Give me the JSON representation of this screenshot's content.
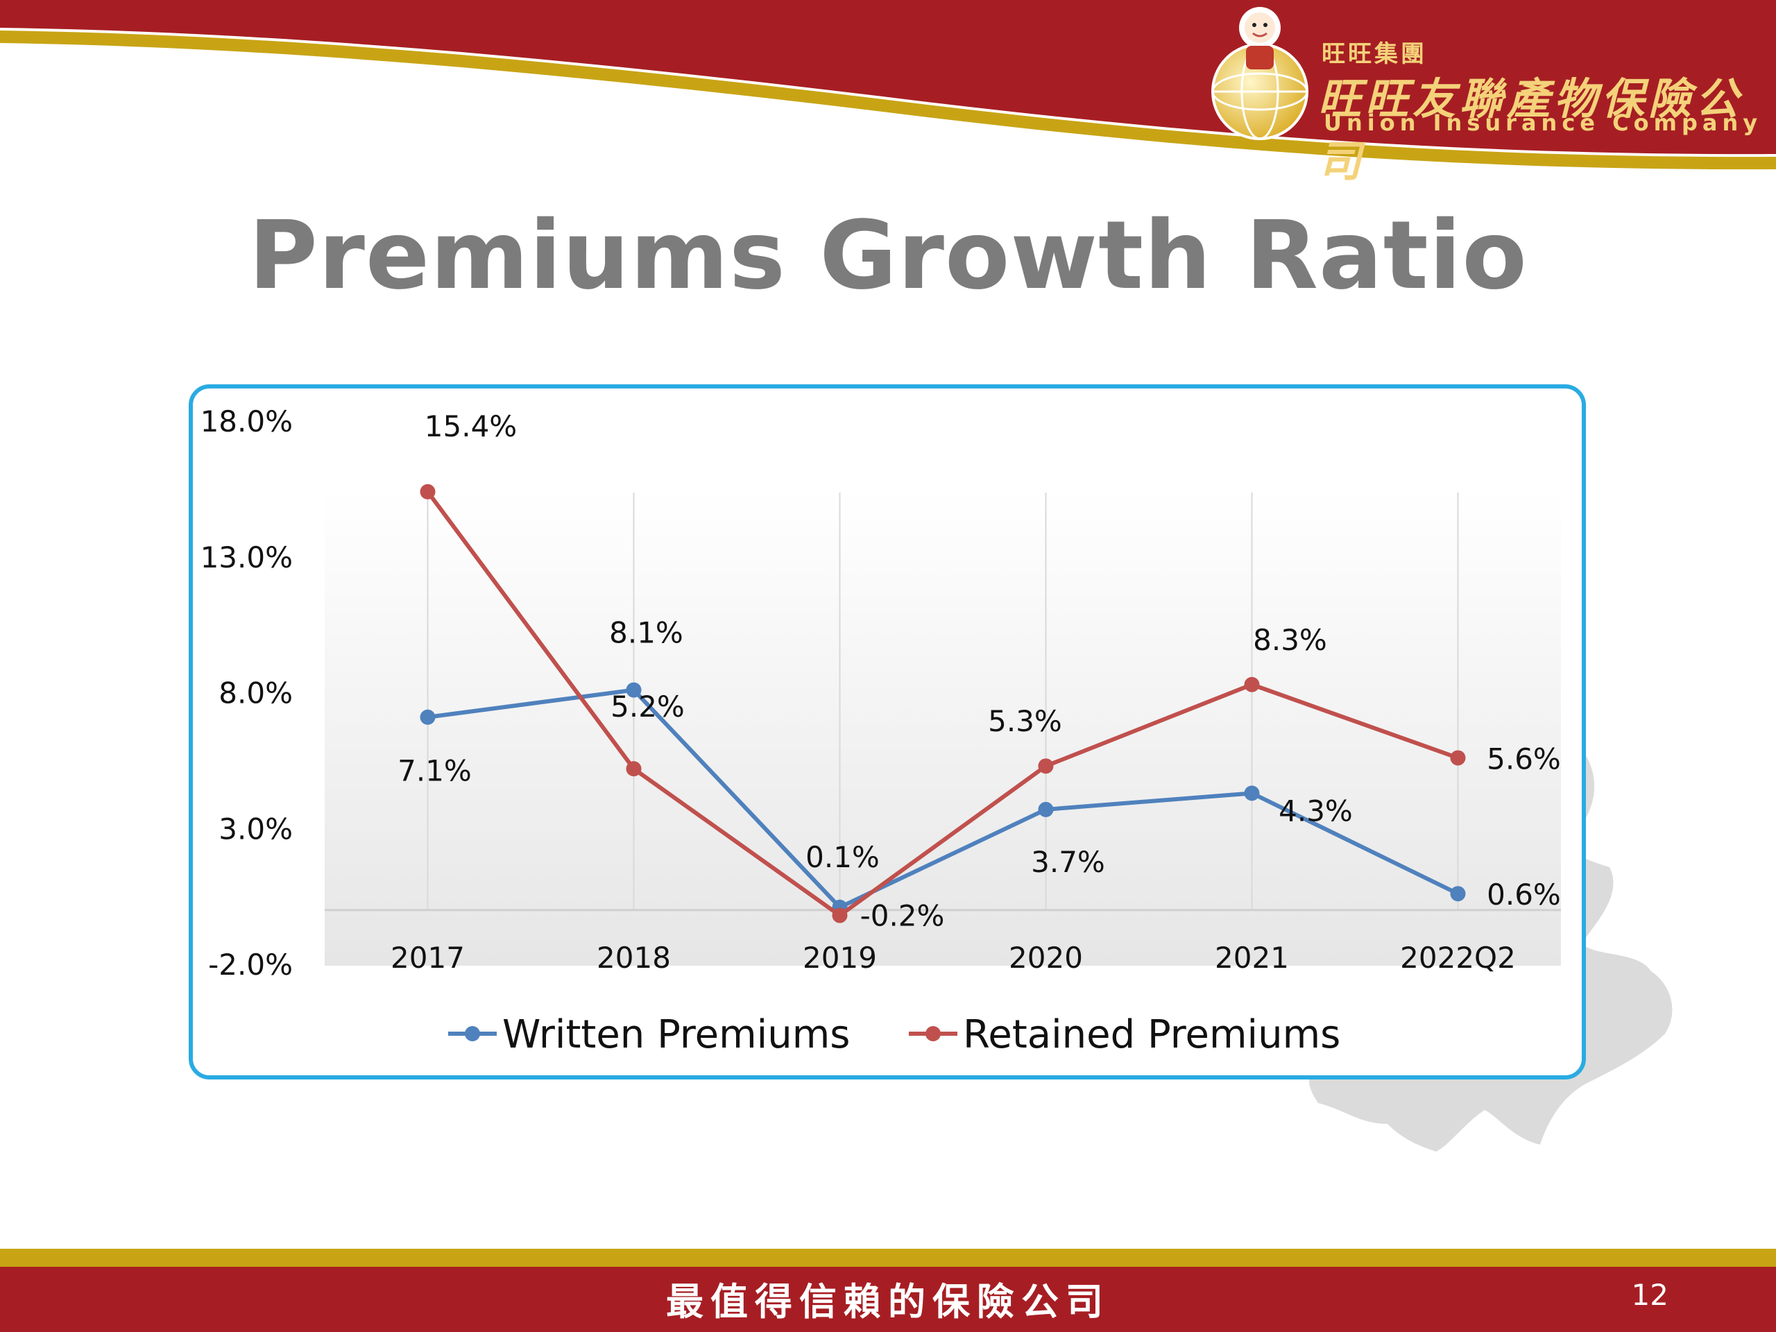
{
  "slide": {
    "title": "Premiums Growth Ratio",
    "logo_group": "旺旺集團",
    "logo_company_cn": "旺旺友聯產物保險公司",
    "logo_company_en": "Union Insurance Company",
    "logo_badge": "UNION",
    "footer_slogan": "最值得信賴的保險公司",
    "page_number": "12",
    "colors": {
      "header_red": "#a61e23",
      "gold": "#c8a415",
      "frame_blue": "#29abe2",
      "title_gray": "#7c7c7c"
    }
  },
  "chart_data": {
    "type": "line",
    "title": "",
    "xlabel": "",
    "ylabel": "",
    "categories": [
      "2017",
      "2018",
      "2019",
      "2020",
      "2021",
      "2022Q2"
    ],
    "ylim": [
      -2.0,
      18.0
    ],
    "yticks": [
      "18.0%",
      "13.0%",
      "8.0%",
      "3.0%",
      "-2.0%"
    ],
    "ytick_values": [
      18,
      13,
      8,
      3,
      -2
    ],
    "grid": "vertical",
    "legend_position": "bottom",
    "series": [
      {
        "name": "Written Premiums",
        "color": "#4f81bd",
        "values": [
          7.1,
          8.1,
          0.1,
          3.7,
          4.3,
          0.6
        ],
        "labels": [
          "7.1%",
          "8.1%",
          "0.1%",
          "3.7%",
          "4.3%",
          "0.6%"
        ]
      },
      {
        "name": "Retained Premiums",
        "color": "#c0504d",
        "values": [
          15.4,
          5.2,
          -0.2,
          5.3,
          8.3,
          5.6
        ],
        "labels": [
          "15.4%",
          "5.2%",
          "-0.2%",
          "5.3%",
          "8.3%",
          "5.6%"
        ]
      }
    ]
  }
}
